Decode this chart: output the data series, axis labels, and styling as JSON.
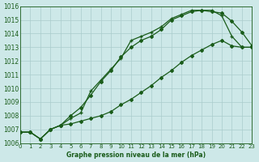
{
  "xlabel": "Graphe pression niveau de la mer (hPa)",
  "ylim": [
    1006,
    1016
  ],
  "xlim": [
    0,
    23
  ],
  "yticks": [
    1006,
    1007,
    1008,
    1009,
    1010,
    1011,
    1012,
    1013,
    1014,
    1015,
    1016
  ],
  "xticks": [
    0,
    1,
    2,
    3,
    4,
    5,
    6,
    7,
    8,
    9,
    10,
    11,
    12,
    13,
    14,
    15,
    16,
    17,
    18,
    19,
    20,
    21,
    22,
    23
  ],
  "bg_color": "#cde8e8",
  "grid_color": "#aacccc",
  "line_color": "#1a5c1a",
  "line1_x": [
    0,
    1,
    2,
    3,
    4,
    5,
    6,
    7,
    8,
    9,
    10,
    11,
    12,
    13,
    14,
    15,
    16,
    17,
    18,
    19,
    20,
    21,
    22,
    23
  ],
  "line1_y": [
    1006.8,
    1006.8,
    1006.3,
    1007.0,
    1007.3,
    1008.0,
    1008.6,
    1009.5,
    1010.5,
    1011.3,
    1012.3,
    1013.0,
    1013.5,
    1013.8,
    1014.3,
    1015.0,
    1015.3,
    1015.6,
    1015.7,
    1015.6,
    1015.5,
    1014.9,
    1014.1,
    1013.1
  ],
  "line2_x": [
    0,
    1,
    2,
    3,
    4,
    5,
    6,
    7,
    8,
    9,
    10,
    11,
    12,
    13,
    14,
    15,
    16,
    17,
    18,
    19,
    20,
    21,
    22,
    23
  ],
  "line2_y": [
    1006.8,
    1006.8,
    1006.3,
    1007.0,
    1007.3,
    1007.8,
    1008.2,
    1009.8,
    1010.6,
    1011.4,
    1012.2,
    1013.5,
    1013.8,
    1014.1,
    1014.5,
    1015.1,
    1015.4,
    1015.7,
    1015.7,
    1015.7,
    1015.3,
    1013.8,
    1013.0,
    1013.0
  ],
  "line3_x": [
    0,
    1,
    2,
    3,
    4,
    5,
    6,
    7,
    8,
    9,
    10,
    11,
    12,
    13,
    14,
    15,
    16,
    17,
    18,
    19,
    20,
    21,
    22,
    23
  ],
  "line3_y": [
    1006.8,
    1006.8,
    1006.3,
    1007.0,
    1007.3,
    1007.4,
    1007.6,
    1007.8,
    1008.0,
    1008.3,
    1008.8,
    1009.2,
    1009.7,
    1010.2,
    1010.8,
    1011.3,
    1011.9,
    1012.4,
    1012.8,
    1013.2,
    1013.5,
    1013.1,
    1013.0,
    1013.0
  ]
}
